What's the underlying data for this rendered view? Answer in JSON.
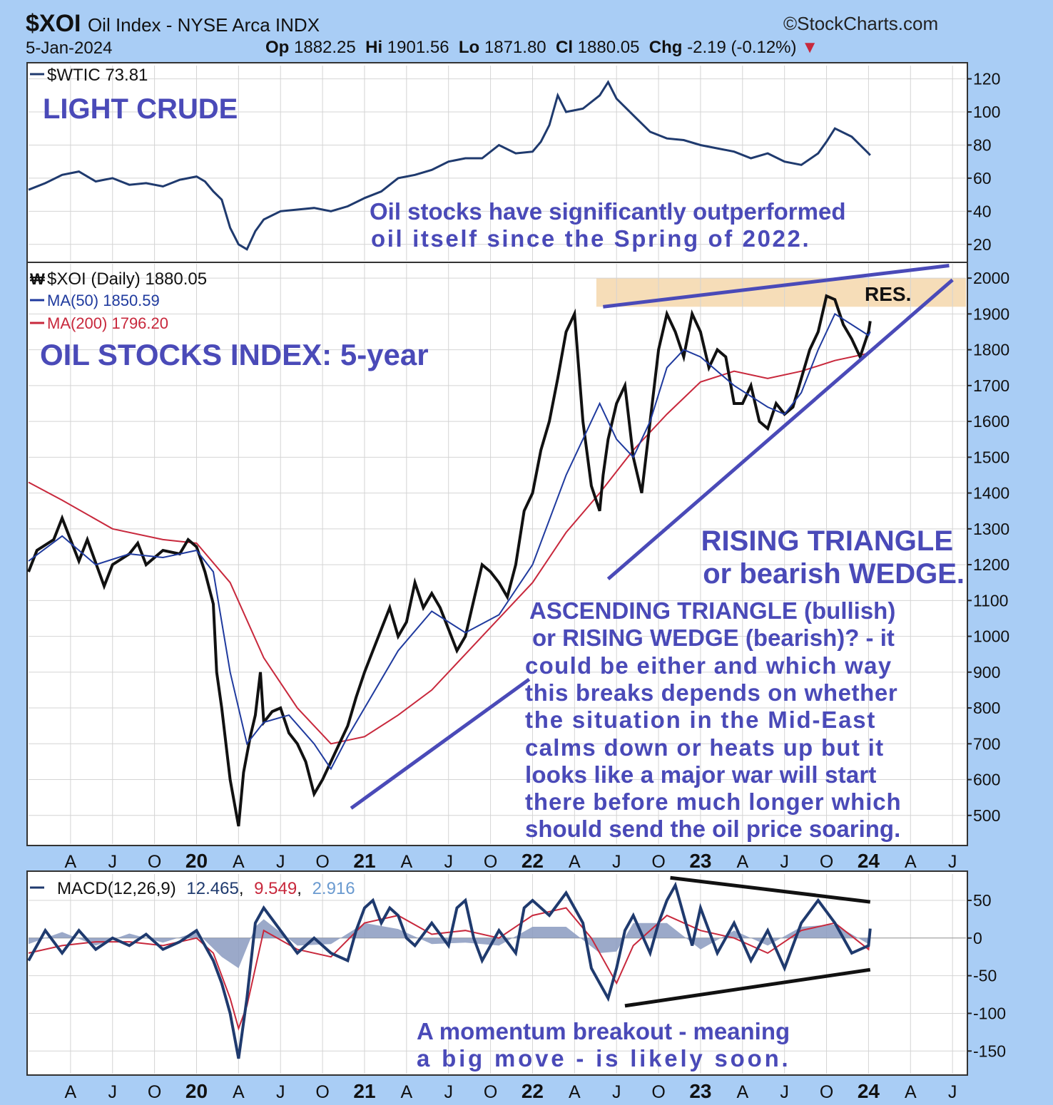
{
  "header": {
    "ticker": "$XOI",
    "name": "Oil Index - NYSE Arca INDX",
    "source": "©StockCharts.com",
    "date": "5-Jan-2024",
    "op_label": "Op",
    "op": "1882.25",
    "hi_label": "Hi",
    "hi": "1901.56",
    "lo_label": "Lo",
    "lo": "1871.80",
    "cl_label": "Cl",
    "cl": "1880.05",
    "chg_label": "Chg",
    "chg": "-2.19 (-0.12%)"
  },
  "colors": {
    "background": "#a9cdf5",
    "panel": "#ffffff",
    "price_line": "#1f3a6e",
    "ma200": "#c8283c",
    "annotation": "#4a4ab8",
    "resistance_band": "#f5d9b0",
    "macd_hist_pos": "#5a7fbf",
    "macd_hist_neg": "#b04a5a",
    "signal_line": "#c8283c"
  },
  "chart_data": [
    {
      "type": "line",
      "legend": "$WTIC 73.81",
      "title": "LIGHT CRUDE",
      "annotation": [
        "Oil stocks have significantly outperformed",
        "oil itself since the Spring of 2022."
      ],
      "y_ticks": [
        20,
        40,
        60,
        80,
        100,
        120
      ],
      "ylim": [
        10,
        128
      ],
      "xlim": [
        2019.0,
        2024.58
      ],
      "series": [
        {
          "x": [
            2019.0,
            2019.1,
            2019.2,
            2019.3,
            2019.4,
            2019.5,
            2019.6,
            2019.7,
            2019.8,
            2019.9,
            2020.0,
            2020.05,
            2020.1,
            2020.15,
            2020.2,
            2020.25,
            2020.3,
            2020.35,
            2020.4,
            2020.5,
            2020.6,
            2020.7,
            2020.8,
            2020.9,
            2021.0,
            2021.1,
            2021.2,
            2021.3,
            2021.4,
            2021.5,
            2021.6,
            2021.7,
            2021.8,
            2021.9,
            2022.0,
            2022.05,
            2022.1,
            2022.15,
            2022.2,
            2022.3,
            2022.4,
            2022.45,
            2022.5,
            2022.6,
            2022.7,
            2022.8,
            2022.9,
            2023.0,
            2023.1,
            2023.2,
            2023.3,
            2023.4,
            2023.5,
            2023.6,
            2023.7,
            2023.75,
            2023.8,
            2023.9,
            2024.0,
            2024.01
          ],
          "y": [
            53,
            57,
            62,
            64,
            58,
            60,
            56,
            57,
            55,
            59,
            61,
            58,
            52,
            47,
            30,
            20,
            17,
            28,
            35,
            40,
            41,
            42,
            40,
            43,
            48,
            52,
            60,
            62,
            65,
            70,
            72,
            72,
            80,
            75,
            76,
            82,
            92,
            110,
            100,
            102,
            110,
            118,
            108,
            98,
            88,
            84,
            83,
            80,
            78,
            76,
            72,
            75,
            70,
            68,
            75,
            82,
            90,
            85,
            75,
            73.81
          ]
        }
      ]
    },
    {
      "type": "line",
      "legend": [
        "$XOI (Daily) 1880.05",
        "MA(50) 1850.59",
        "MA(200) 1796.20"
      ],
      "title": "OIL STOCKS INDEX: 5-year",
      "label_res": "RES.",
      "label_pattern": [
        "RISING TRIANGLE",
        "or bearish WEDGE."
      ],
      "annotation": [
        "ASCENDING TRIANGLE (bullish)",
        "or RISING WEDGE (bearish)? - it",
        "could be either and which way",
        "this breaks depends on whether",
        "the situation in the Mid-East",
        "calms down or heats up but it",
        "looks like a major war will start",
        "there before much longer which",
        "should send the oil price soaring."
      ],
      "y_ticks": [
        500,
        600,
        700,
        800,
        900,
        1000,
        1100,
        1200,
        1300,
        1400,
        1500,
        1600,
        1700,
        1800,
        1900,
        2000
      ],
      "ylim": [
        420,
        2040
      ],
      "xlim": [
        2019.0,
        2024.58
      ],
      "resistance_band": [
        1920,
        2000
      ],
      "series": [
        {
          "name": "$XOI (Daily)",
          "x": [
            2019.0,
            2019.05,
            2019.15,
            2019.2,
            2019.3,
            2019.35,
            2019.45,
            2019.5,
            2019.6,
            2019.65,
            2019.7,
            2019.8,
            2019.9,
            2019.95,
            2020.0,
            2020.05,
            2020.1,
            2020.12,
            2020.15,
            2020.2,
            2020.25,
            2020.28,
            2020.32,
            2020.35,
            2020.38,
            2020.4,
            2020.45,
            2020.5,
            2020.55,
            2020.6,
            2020.65,
            2020.7,
            2020.75,
            2020.8,
            2020.85,
            2020.9,
            2020.95,
            2021.0,
            2021.05,
            2021.1,
            2021.15,
            2021.2,
            2021.25,
            2021.3,
            2021.35,
            2021.4,
            2021.45,
            2021.5,
            2021.55,
            2021.6,
            2021.65,
            2021.7,
            2021.75,
            2021.8,
            2021.85,
            2021.9,
            2021.95,
            2022.0,
            2022.05,
            2022.1,
            2022.15,
            2022.2,
            2022.25,
            2022.3,
            2022.35,
            2022.4,
            2022.42,
            2022.45,
            2022.5,
            2022.55,
            2022.6,
            2022.65,
            2022.7,
            2022.75,
            2022.8,
            2022.85,
            2022.9,
            2022.95,
            2023.0,
            2023.05,
            2023.1,
            2023.15,
            2023.2,
            2023.25,
            2023.3,
            2023.35,
            2023.4,
            2023.45,
            2023.5,
            2023.55,
            2023.6,
            2023.65,
            2023.7,
            2023.75,
            2023.8,
            2023.85,
            2023.9,
            2023.95,
            2024.0,
            2024.01
          ],
          "y": [
            1180,
            1240,
            1270,
            1330,
            1210,
            1270,
            1140,
            1200,
            1230,
            1260,
            1200,
            1240,
            1230,
            1270,
            1250,
            1180,
            1090,
            900,
            800,
            600,
            470,
            620,
            720,
            780,
            900,
            760,
            790,
            800,
            730,
            700,
            650,
            560,
            600,
            650,
            700,
            750,
            830,
            900,
            960,
            1020,
            1080,
            1000,
            1040,
            1150,
            1080,
            1120,
            1080,
            1020,
            960,
            1000,
            1100,
            1200,
            1180,
            1150,
            1110,
            1200,
            1350,
            1400,
            1520,
            1600,
            1720,
            1850,
            1900,
            1600,
            1420,
            1350,
            1450,
            1550,
            1650,
            1700,
            1500,
            1400,
            1600,
            1800,
            1900,
            1850,
            1780,
            1900,
            1850,
            1750,
            1800,
            1780,
            1650,
            1650,
            1700,
            1600,
            1580,
            1650,
            1620,
            1640,
            1720,
            1800,
            1850,
            1950,
            1940,
            1870,
            1830,
            1780,
            1850,
            1880.05
          ]
        },
        {
          "name": "MA(50)",
          "x": [
            2019.0,
            2019.2,
            2019.4,
            2019.6,
            2019.8,
            2020.0,
            2020.1,
            2020.2,
            2020.3,
            2020.4,
            2020.55,
            2020.7,
            2020.8,
            2020.9,
            2021.0,
            2021.2,
            2021.4,
            2021.6,
            2021.8,
            2022.0,
            2022.2,
            2022.4,
            2022.5,
            2022.6,
            2022.7,
            2022.8,
            2022.9,
            2023.0,
            2023.2,
            2023.4,
            2023.5,
            2023.6,
            2023.7,
            2023.8,
            2023.9,
            2024.0,
            2024.01
          ],
          "y": [
            1210,
            1280,
            1200,
            1230,
            1220,
            1240,
            1180,
            900,
            700,
            760,
            780,
            700,
            630,
            720,
            800,
            960,
            1070,
            1010,
            1060,
            1200,
            1450,
            1650,
            1550,
            1500,
            1600,
            1750,
            1800,
            1780,
            1700,
            1640,
            1620,
            1680,
            1800,
            1900,
            1870,
            1840,
            1850.59
          ]
        },
        {
          "name": "MA(200)",
          "x": [
            2019.0,
            2019.2,
            2019.5,
            2019.8,
            2020.0,
            2020.2,
            2020.4,
            2020.6,
            2020.8,
            2021.0,
            2021.2,
            2021.4,
            2021.6,
            2021.8,
            2022.0,
            2022.2,
            2022.4,
            2022.6,
            2022.8,
            2023.0,
            2023.2,
            2023.4,
            2023.6,
            2023.8,
            2024.0,
            2024.01
          ],
          "y": [
            1430,
            1380,
            1300,
            1270,
            1260,
            1150,
            940,
            800,
            700,
            720,
            780,
            850,
            950,
            1050,
            1150,
            1290,
            1400,
            1520,
            1620,
            1710,
            1740,
            1720,
            1740,
            1770,
            1790,
            1796.2
          ]
        }
      ],
      "trendlines": {
        "upper": {
          "x": [
            2022.42,
            2024.48
          ],
          "y": [
            1920,
            2035
          ]
        },
        "lower_lt": {
          "x": [
            2020.92,
            2021.98
          ],
          "y": [
            520,
            880
          ]
        },
        "lower_st": {
          "x": [
            2022.45,
            2024.5
          ],
          "y": [
            1160,
            1995
          ]
        }
      }
    },
    {
      "type": "line",
      "legend": [
        "MACD(12,26,9)",
        "12.465",
        "9.549",
        "2.916"
      ],
      "annotation": [
        "A momentum breakout - meaning",
        "a big move - is likely soon."
      ],
      "y_ticks": [
        -150,
        -100,
        -50,
        0,
        50
      ],
      "ylim": [
        -180,
        85
      ],
      "xlim": [
        2019.0,
        2024.58
      ],
      "series": [
        {
          "name": "MACD(12,26,9)",
          "x": [
            2019.0,
            2019.1,
            2019.2,
            2019.3,
            2019.4,
            2019.5,
            2019.6,
            2019.7,
            2019.8,
            2019.9,
            2020.0,
            2020.1,
            2020.15,
            2020.2,
            2020.25,
            2020.3,
            2020.35,
            2020.4,
            2020.5,
            2020.6,
            2020.7,
            2020.8,
            2020.9,
            2020.95,
            2021.0,
            2021.05,
            2021.1,
            2021.15,
            2021.2,
            2021.25,
            2021.3,
            2021.4,
            2021.5,
            2021.55,
            2021.6,
            2021.65,
            2021.7,
            2021.8,
            2021.9,
            2021.95,
            2022.0,
            2022.1,
            2022.2,
            2022.3,
            2022.35,
            2022.4,
            2022.45,
            2022.5,
            2022.55,
            2022.6,
            2022.7,
            2022.75,
            2022.8,
            2022.85,
            2022.9,
            2022.95,
            2023.0,
            2023.1,
            2023.2,
            2023.3,
            2023.4,
            2023.5,
            2023.6,
            2023.7,
            2023.8,
            2023.9,
            2024.0,
            2024.01
          ],
          "y": [
            -30,
            10,
            -20,
            10,
            -15,
            0,
            -10,
            5,
            -15,
            -5,
            10,
            -30,
            -60,
            -100,
            -160,
            -80,
            20,
            40,
            10,
            -20,
            0,
            -20,
            -30,
            10,
            40,
            50,
            20,
            40,
            30,
            0,
            -10,
            20,
            -10,
            40,
            50,
            0,
            -30,
            10,
            -20,
            40,
            50,
            30,
            60,
            20,
            -40,
            -60,
            -80,
            -40,
            10,
            30,
            -20,
            20,
            50,
            70,
            30,
            -10,
            40,
            -20,
            20,
            -30,
            10,
            -40,
            20,
            50,
            20,
            -20,
            -10,
            12.465
          ]
        },
        {
          "name": "signal",
          "x": [
            2019.0,
            2019.2,
            2019.4,
            2019.6,
            2019.8,
            2020.0,
            2020.1,
            2020.2,
            2020.25,
            2020.3,
            2020.4,
            2020.6,
            2020.8,
            2021.0,
            2021.2,
            2021.4,
            2021.6,
            2021.8,
            2022.0,
            2022.2,
            2022.35,
            2022.5,
            2022.6,
            2022.8,
            2023.0,
            2023.2,
            2023.4,
            2023.6,
            2023.8,
            2024.0,
            2024.01
          ],
          "y": [
            -20,
            -10,
            -5,
            -5,
            -10,
            0,
            -20,
            -80,
            -120,
            -90,
            10,
            -15,
            -25,
            20,
            30,
            5,
            10,
            0,
            30,
            40,
            0,
            -60,
            -10,
            30,
            10,
            0,
            -20,
            10,
            20,
            -15,
            9.549
          ]
        },
        {
          "name": "histogram",
          "x": [
            2019.0,
            2019.2,
            2019.4,
            2019.6,
            2019.8,
            2020.0,
            2020.15,
            2020.25,
            2020.35,
            2020.4,
            2020.6,
            2020.8,
            2021.0,
            2021.2,
            2021.4,
            2021.6,
            2021.8,
            2022.0,
            2022.2,
            2022.4,
            2022.5,
            2022.6,
            2022.8,
            2023.0,
            2023.2,
            2023.4,
            2023.6,
            2023.8,
            2024.0,
            2024.01
          ],
          "y": [
            -8,
            8,
            -10,
            6,
            -6,
            8,
            -25,
            -40,
            15,
            25,
            -10,
            -8,
            20,
            12,
            -8,
            -6,
            -10,
            15,
            15,
            -20,
            -18,
            20,
            20,
            -15,
            10,
            -10,
            15,
            18,
            -8,
            2.916
          ]
        }
      ],
      "trendlines": {
        "upper": {
          "x": [
            2022.82,
            2024.01
          ],
          "y": [
            80,
            48
          ]
        },
        "lower": {
          "x": [
            2022.55,
            2024.01
          ],
          "y": [
            -90,
            -42
          ]
        }
      }
    }
  ],
  "x_axis_labels": [
    "A",
    "J",
    "O",
    "20",
    "A",
    "J",
    "O",
    "21",
    "A",
    "J",
    "O",
    "22",
    "A",
    "J",
    "O",
    "23",
    "A",
    "J",
    "O",
    "24",
    "A",
    "J"
  ],
  "x_axis_positions": [
    2019.25,
    2019.5,
    2019.75,
    2020.0,
    2020.25,
    2020.5,
    2020.75,
    2021.0,
    2021.25,
    2021.5,
    2021.75,
    2022.0,
    2022.25,
    2022.5,
    2022.75,
    2023.0,
    2023.25,
    2023.5,
    2023.75,
    2024.0,
    2024.25,
    2024.5
  ]
}
